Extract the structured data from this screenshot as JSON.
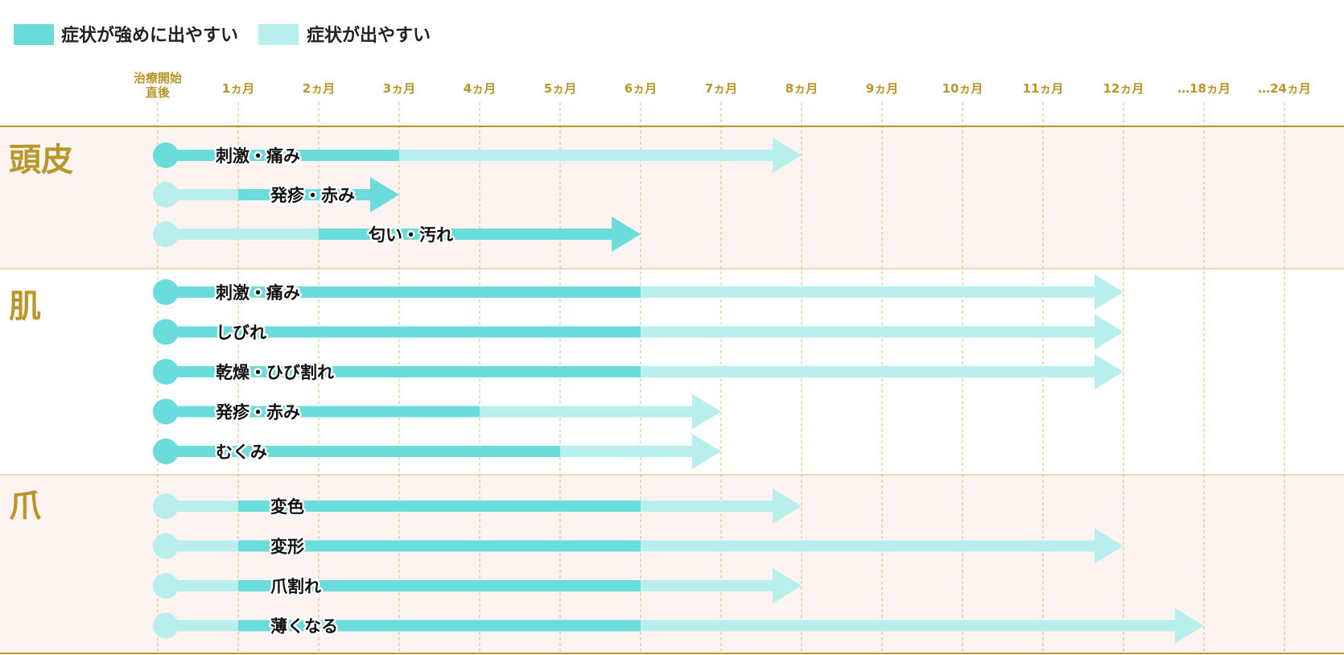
{
  "legend": [
    {
      "label": "症状が強めに出やすい",
      "color": "#6adcdc"
    },
    {
      "label": "症状が出やすい",
      "color": "#b8eeec"
    }
  ],
  "colors": {
    "strong": "#6adcdc",
    "light": "#b8eeec",
    "gold": "#b8962a",
    "band": "#fdf4f1"
  },
  "chart_data": {
    "type": "timeline",
    "x_ticks": [
      {
        "month": 0,
        "label_lines": [
          "治療開始",
          "直後"
        ]
      },
      {
        "month": 1,
        "label_lines": [
          "1ヵ月"
        ]
      },
      {
        "month": 2,
        "label_lines": [
          "2ヵ月"
        ]
      },
      {
        "month": 3,
        "label_lines": [
          "3ヵ月"
        ]
      },
      {
        "month": 4,
        "label_lines": [
          "4ヵ月"
        ]
      },
      {
        "month": 5,
        "label_lines": [
          "5ヵ月"
        ]
      },
      {
        "month": 6,
        "label_lines": [
          "6ヵ月"
        ]
      },
      {
        "month": 7,
        "label_lines": [
          "7ヵ月"
        ]
      },
      {
        "month": 8,
        "label_lines": [
          "8ヵ月"
        ]
      },
      {
        "month": 9,
        "label_lines": [
          "9ヵ月"
        ]
      },
      {
        "month": 10,
        "label_lines": [
          "10ヵ月"
        ]
      },
      {
        "month": 11,
        "label_lines": [
          "11ヵ月"
        ]
      },
      {
        "month": 12,
        "label_lines": [
          "12ヵ月"
        ]
      },
      {
        "month": 18,
        "label_lines": [
          "…18ヵ月"
        ]
      },
      {
        "month": 24,
        "label_lines": [
          "…24ヵ月"
        ]
      }
    ],
    "sections": [
      {
        "name": "頭皮",
        "shaded": true,
        "symptoms": [
          {
            "label": "刺激・痛み",
            "segments": [
              {
                "from": 0,
                "to": 3,
                "level": "strong"
              },
              {
                "from": 3,
                "to": 8,
                "level": "light"
              }
            ]
          },
          {
            "label": "発疹・赤み",
            "segments": [
              {
                "from": 0,
                "to": 1,
                "level": "light"
              },
              {
                "from": 1,
                "to": 3,
                "level": "strong"
              }
            ]
          },
          {
            "label": "匂い・汚れ",
            "segments": [
              {
                "from": 0,
                "to": 2,
                "level": "light"
              },
              {
                "from": 2,
                "to": 6,
                "level": "strong"
              }
            ]
          }
        ]
      },
      {
        "name": "肌",
        "shaded": false,
        "symptoms": [
          {
            "label": "刺激・痛み",
            "segments": [
              {
                "from": 0,
                "to": 6,
                "level": "strong"
              },
              {
                "from": 6,
                "to": 12,
                "level": "light"
              }
            ]
          },
          {
            "label": "しびれ",
            "segments": [
              {
                "from": 0,
                "to": 6,
                "level": "strong"
              },
              {
                "from": 6,
                "to": 12,
                "level": "light"
              }
            ]
          },
          {
            "label": "乾燥・ひび割れ",
            "segments": [
              {
                "from": 0,
                "to": 6,
                "level": "strong"
              },
              {
                "from": 6,
                "to": 12,
                "level": "light"
              }
            ]
          },
          {
            "label": "発疹・赤み",
            "segments": [
              {
                "from": 0,
                "to": 4,
                "level": "strong"
              },
              {
                "from": 4,
                "to": 7,
                "level": "light"
              }
            ]
          },
          {
            "label": "むくみ",
            "segments": [
              {
                "from": 0,
                "to": 5,
                "level": "strong"
              },
              {
                "from": 5,
                "to": 7,
                "level": "light"
              }
            ]
          }
        ]
      },
      {
        "name": "爪",
        "shaded": true,
        "symptoms": [
          {
            "label": "変色",
            "segments": [
              {
                "from": 0,
                "to": 1,
                "level": "light"
              },
              {
                "from": 1,
                "to": 6,
                "level": "strong"
              },
              {
                "from": 6,
                "to": 8,
                "level": "light"
              }
            ]
          },
          {
            "label": "変形",
            "segments": [
              {
                "from": 0,
                "to": 1,
                "level": "light"
              },
              {
                "from": 1,
                "to": 6,
                "level": "strong"
              },
              {
                "from": 6,
                "to": 12,
                "level": "light"
              }
            ]
          },
          {
            "label": "爪割れ",
            "segments": [
              {
                "from": 0,
                "to": 1,
                "level": "light"
              },
              {
                "from": 1,
                "to": 6,
                "level": "strong"
              },
              {
                "from": 6,
                "to": 8,
                "level": "light"
              }
            ]
          },
          {
            "label": "薄くなる",
            "segments": [
              {
                "from": 0,
                "to": 1,
                "level": "light"
              },
              {
                "from": 1,
                "to": 6,
                "level": "strong"
              },
              {
                "from": 6,
                "to": 18,
                "level": "light"
              }
            ]
          }
        ]
      }
    ]
  }
}
